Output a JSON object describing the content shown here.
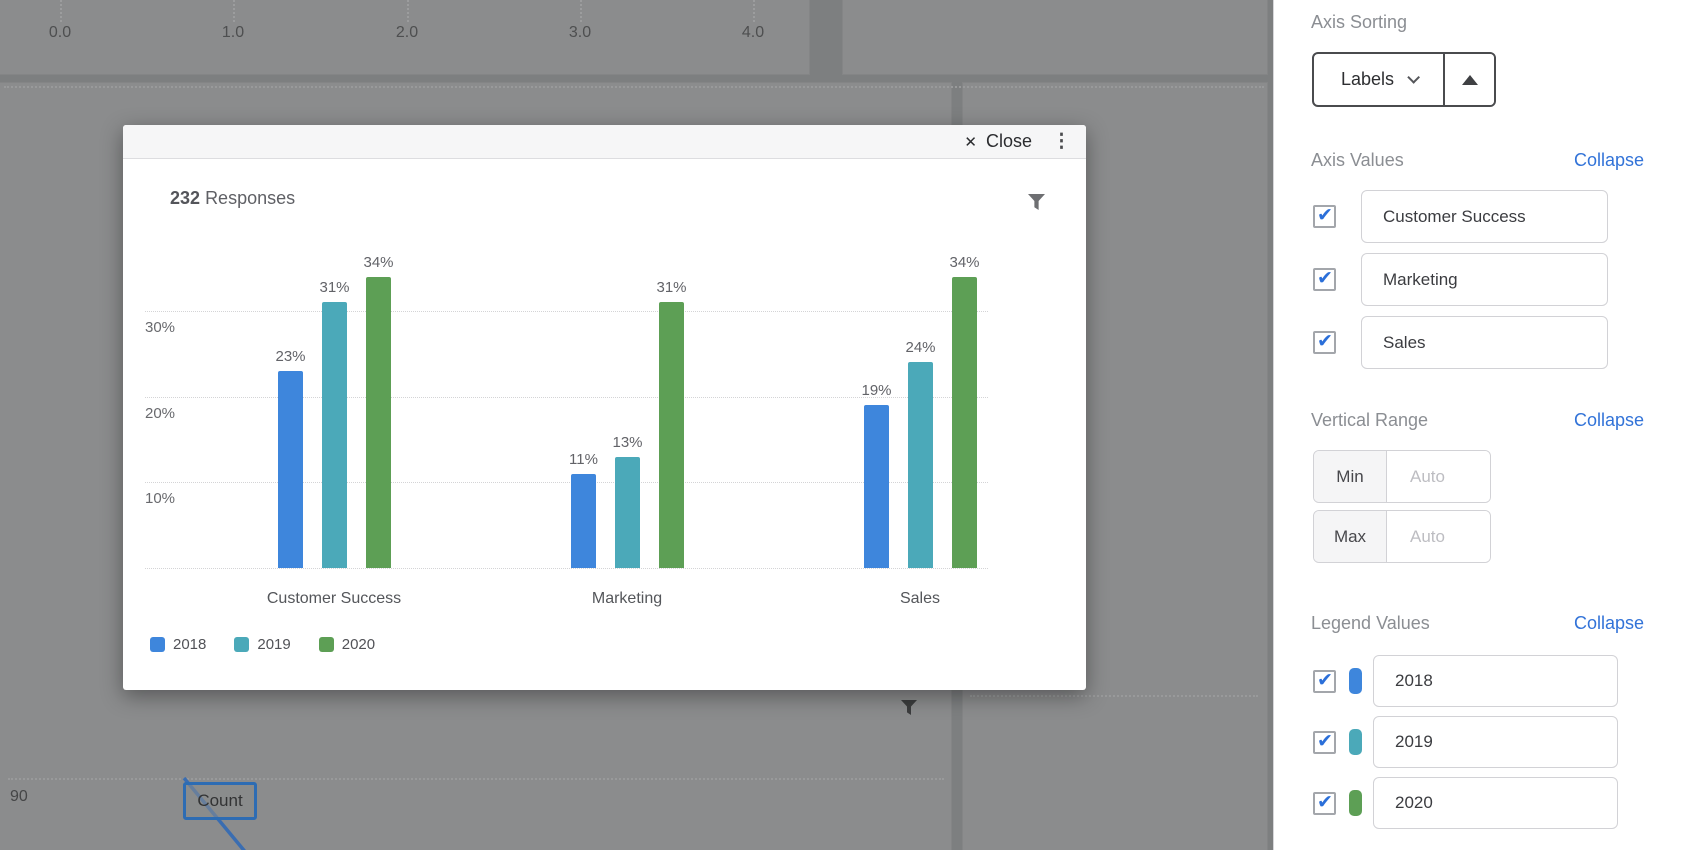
{
  "colors": {
    "blue": "#3e86dc",
    "teal": "#4ba9b9",
    "green": "#5d9f55",
    "link_blue": "#3273d8",
    "check_blue": "#2b6fd9",
    "count_border_blue": "#2d6cb3"
  },
  "icons": {
    "close": "✕",
    "kebab_menu": "⋮",
    "checkmark": "✔",
    "filter": "funnel",
    "sort_ascending": "triangle-up",
    "dropdown_chevron": "chevron-down"
  },
  "backdrop": {
    "top_axis_ticks": [
      "0.0",
      "1.0",
      "2.0",
      "3.0",
      "4.0"
    ],
    "left_axis_value": "90",
    "tooltip_label": "Count"
  },
  "modal": {
    "header": {
      "close_label": "Close"
    },
    "summary": {
      "count": "232",
      "label": "Responses"
    }
  },
  "chart_data": {
    "type": "bar",
    "title": "232 Responses",
    "categories": [
      "Customer Success",
      "Marketing",
      "Sales"
    ],
    "series": [
      {
        "name": "2018",
        "color": "#3e86dc",
        "values": [
          23,
          11,
          19
        ]
      },
      {
        "name": "2019",
        "color": "#4ba9b9",
        "values": [
          31,
          13,
          24
        ]
      },
      {
        "name": "2020",
        "color": "#5d9f55",
        "values": [
          34,
          31,
          34
        ]
      }
    ],
    "value_suffix": "%",
    "ylim": [
      0,
      40
    ],
    "yticks": [
      10,
      20,
      30
    ],
    "grid": true,
    "legend_position": "bottom-left"
  },
  "sidebar": {
    "axis_sorting": {
      "title": "Axis Sorting",
      "selected": "Labels"
    },
    "axis_values": {
      "title": "Axis Values",
      "collapse": "Collapse",
      "items": [
        {
          "label": "Customer Success",
          "checked": true
        },
        {
          "label": "Marketing",
          "checked": true
        },
        {
          "label": "Sales",
          "checked": true
        }
      ]
    },
    "vertical_range": {
      "title": "Vertical Range",
      "collapse": "Collapse",
      "min_label": "Min",
      "max_label": "Max",
      "min_placeholder": "Auto",
      "max_placeholder": "Auto"
    },
    "legend_values": {
      "title": "Legend Values",
      "collapse": "Collapse",
      "items": [
        {
          "label": "2018",
          "color": "#3e86dc",
          "checked": true
        },
        {
          "label": "2019",
          "color": "#4ba9b9",
          "checked": true
        },
        {
          "label": "2020",
          "color": "#5d9f55",
          "checked": true
        }
      ]
    }
  }
}
